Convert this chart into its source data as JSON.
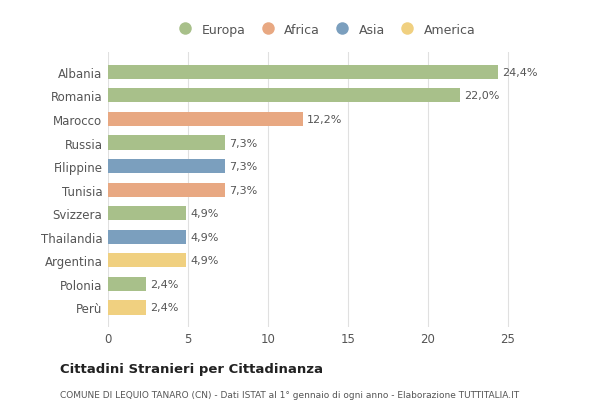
{
  "countries": [
    "Albania",
    "Romania",
    "Marocco",
    "Russia",
    "Filippine",
    "Tunisia",
    "Svizzera",
    "Thailandia",
    "Argentina",
    "Polonia",
    "Perù"
  ],
  "values": [
    24.4,
    22.0,
    12.2,
    7.3,
    7.3,
    7.3,
    4.9,
    4.9,
    4.9,
    2.4,
    2.4
  ],
  "labels": [
    "24,4%",
    "22,0%",
    "12,2%",
    "7,3%",
    "7,3%",
    "7,3%",
    "4,9%",
    "4,9%",
    "4,9%",
    "2,4%",
    "2,4%"
  ],
  "continents": [
    "Europa",
    "Europa",
    "Africa",
    "Europa",
    "Asia",
    "Africa",
    "Europa",
    "Asia",
    "America",
    "Europa",
    "America"
  ],
  "colors": {
    "Europa": "#a8c08a",
    "Africa": "#e8a882",
    "Asia": "#7b9fbe",
    "America": "#f0d080"
  },
  "legend_order": [
    "Europa",
    "Africa",
    "Asia",
    "America"
  ],
  "xlim": [
    0,
    27
  ],
  "xticks": [
    0,
    5,
    10,
    15,
    20,
    25
  ],
  "title": "Cittadini Stranieri per Cittadinanza",
  "subtitle": "COMUNE DI LEQUIO TANARO (CN) - Dati ISTAT al 1° gennaio di ogni anno - Elaborazione TUTTITALIA.IT",
  "bg_color": "#ffffff",
  "grid_color": "#e0e0e0"
}
